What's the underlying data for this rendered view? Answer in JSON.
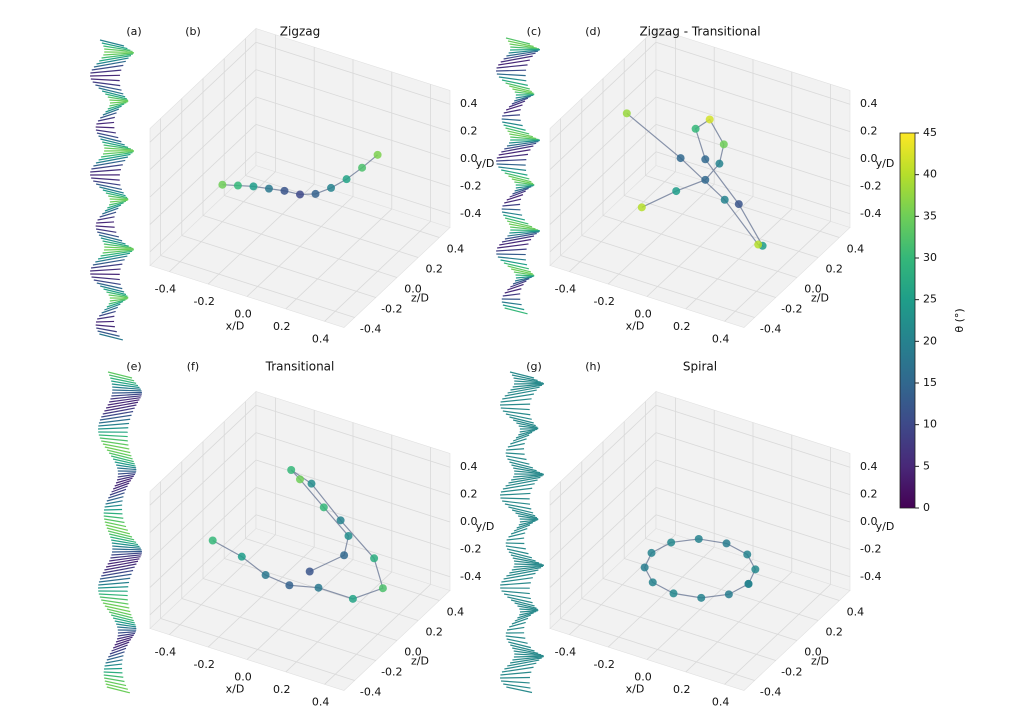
{
  "chart_data": [
    {
      "type": "scatter3d",
      "panel_labels": [
        "(a)",
        "(b)"
      ],
      "title": "Zigzag",
      "xlabel": "x/D",
      "ylabel": "y/D",
      "zlabel": "z/D",
      "xlim": [
        -0.5,
        0.5
      ],
      "ylim": [
        -0.5,
        0.5
      ],
      "zlim": [
        -0.5,
        0.5
      ],
      "xticks": [
        -0.4,
        -0.2,
        {
          "value": 0,
          "label": "0.0"
        },
        0.2,
        0.4
      ],
      "yticks": [
        -0.4,
        -0.2,
        {
          "value": 0,
          "label": "0.0"
        },
        0.2,
        0.4
      ],
      "zticks": [
        -0.4,
        -0.2,
        {
          "value": 0,
          "label": "0.0"
        },
        0.2,
        0.4
      ],
      "series": [
        {
          "x": [
            -0.4,
            -0.32,
            -0.24,
            -0.16,
            -0.08,
            0,
            0.08,
            0.16,
            0.24,
            0.32,
            0.4
          ],
          "y": [
            -0.23,
            -0.2,
            -0.17,
            -0.15,
            -0.13,
            -0.12,
            -0.08,
            0,
            0.1,
            0.22,
            0.35
          ],
          "z": [
            0,
            0,
            0,
            0,
            0,
            0,
            0,
            0,
            0,
            0,
            0
          ],
          "theta": [
            35,
            30,
            25,
            18,
            12,
            10,
            14,
            20,
            26,
            32,
            36
          ]
        }
      ]
    },
    {
      "type": "scatter3d",
      "panel_labels": [
        "(c)",
        "(d)"
      ],
      "title": "Zigzag - Transitional",
      "xlabel": "x/D",
      "ylabel": "y/D",
      "zlabel": "z/D",
      "xlim": [
        -0.5,
        0.5
      ],
      "ylim": [
        -0.5,
        0.5
      ],
      "zlim": [
        -0.5,
        0.5
      ],
      "xticks": [
        -0.4,
        -0.2,
        {
          "value": 0,
          "label": "0.0"
        },
        0.2,
        0.4
      ],
      "yticks": [
        -0.4,
        -0.2,
        {
          "value": 0,
          "label": "0.0"
        },
        0.2,
        0.4
      ],
      "zticks": [
        -0.4,
        -0.2,
        {
          "value": 0,
          "label": "0.0"
        },
        0.2,
        0.4
      ],
      "series": [
        {
          "x": [
            -0.3,
            -0.15,
            0,
            0.1,
            0.15,
            0.05,
            -0.05,
            0,
            0.2,
            0.35,
            0.3,
            0.1,
            -0.1,
            -0.35
          ],
          "y": [
            -0.35,
            -0.2,
            -0.05,
            0.15,
            0.35,
            0.45,
            0.3,
            0.1,
            -0.1,
            -0.3,
            -0.35,
            -0.15,
            0.1,
            0.35
          ],
          "z": [
            0,
            0.05,
            0.05,
            0,
            -0.05,
            0,
            0.05,
            0.05,
            0,
            -0.05,
            0,
            0.05,
            0,
            -0.05
          ],
          "theta": [
            40,
            25,
            15,
            20,
            35,
            42,
            30,
            15,
            12,
            25,
            40,
            20,
            15,
            38
          ]
        }
      ]
    },
    {
      "type": "scatter3d",
      "panel_labels": [
        "(e)",
        "(f)"
      ],
      "title": "Transitional",
      "xlabel": "x/D",
      "ylabel": "y/D",
      "zlabel": "z/D",
      "xlim": [
        -0.5,
        0.5
      ],
      "ylim": [
        -0.5,
        0.5
      ],
      "zlim": [
        -0.5,
        0.5
      ],
      "xticks": [
        -0.4,
        -0.2,
        {
          "value": 0,
          "label": "0.0"
        },
        0.2,
        0.4
      ],
      "yticks": [
        -0.4,
        -0.2,
        {
          "value": 0,
          "label": "0.0"
        },
        0.2,
        0.4
      ],
      "zticks": [
        -0.4,
        -0.2,
        {
          "value": 0,
          "label": "0.0"
        },
        0.2,
        0.4
      ],
      "series": [
        {
          "x": [
            -0.45,
            -0.3,
            -0.15,
            0,
            0.15,
            0.3,
            0.4,
            0.3,
            0.1,
            -0.05,
            -0.1,
            0,
            0.15,
            0.25,
            0.2,
            0.05
          ],
          "y": [
            -0.2,
            -0.25,
            -0.28,
            -0.25,
            -0.2,
            -0.25,
            -0.2,
            -0.1,
            0.05,
            0.25,
            0.4,
            0.45,
            0.35,
            0.15,
            -0.05,
            -0.2
          ],
          "z": [
            0,
            0,
            -0.05,
            -0.1,
            -0.1,
            -0.05,
            0.05,
            0.15,
            0.2,
            0.2,
            0.1,
            0,
            -0.05,
            0,
            0.05,
            0
          ],
          "theta": [
            30,
            25,
            18,
            14,
            18,
            26,
            32,
            28,
            20,
            22,
            30,
            35,
            30,
            22,
            15,
            12
          ]
        }
      ]
    },
    {
      "type": "scatter3d",
      "panel_labels": [
        "(g)",
        "(h)"
      ],
      "title": "Spiral",
      "xlabel": "x/D",
      "ylabel": "y/D",
      "zlabel": "z/D",
      "xlim": [
        -0.5,
        0.5
      ],
      "ylim": [
        -0.5,
        0.5
      ],
      "zlim": [
        -0.5,
        0.5
      ],
      "xticks": [
        -0.4,
        -0.2,
        {
          "value": 0,
          "label": "0.0"
        },
        0.2,
        0.4
      ],
      "yticks": [
        -0.4,
        -0.2,
        {
          "value": 0,
          "label": "0.0"
        },
        0.2,
        0.4
      ],
      "zticks": [
        -0.4,
        -0.2,
        {
          "value": 0,
          "label": "0.0"
        },
        0.2,
        0.4
      ],
      "series": [
        {
          "x": [
            0.25,
            0.217,
            0.125,
            0,
            -0.125,
            -0.217,
            -0.25,
            -0.217,
            -0.125,
            0,
            0.125,
            0.217,
            0.25
          ],
          "y": [
            -0.2,
            -0.2,
            -0.2,
            -0.2,
            -0.2,
            -0.2,
            -0.2,
            -0.2,
            -0.2,
            -0.2,
            -0.2,
            -0.2,
            -0.2
          ],
          "z": [
            0,
            0.125,
            0.217,
            0.25,
            0.217,
            0.125,
            0,
            -0.125,
            -0.217,
            -0.25,
            -0.217,
            -0.125,
            0
          ],
          "theta": [
            20,
            21,
            20,
            19,
            20,
            21,
            20,
            19,
            20,
            21,
            20,
            19,
            20
          ]
        }
      ]
    }
  ],
  "colorbar": {
    "label": "θ (°)",
    "colormap": "viridis",
    "clim": [
      0,
      45
    ],
    "ticks": [
      0,
      5,
      10,
      15,
      20,
      25,
      30,
      35,
      40,
      45
    ]
  }
}
